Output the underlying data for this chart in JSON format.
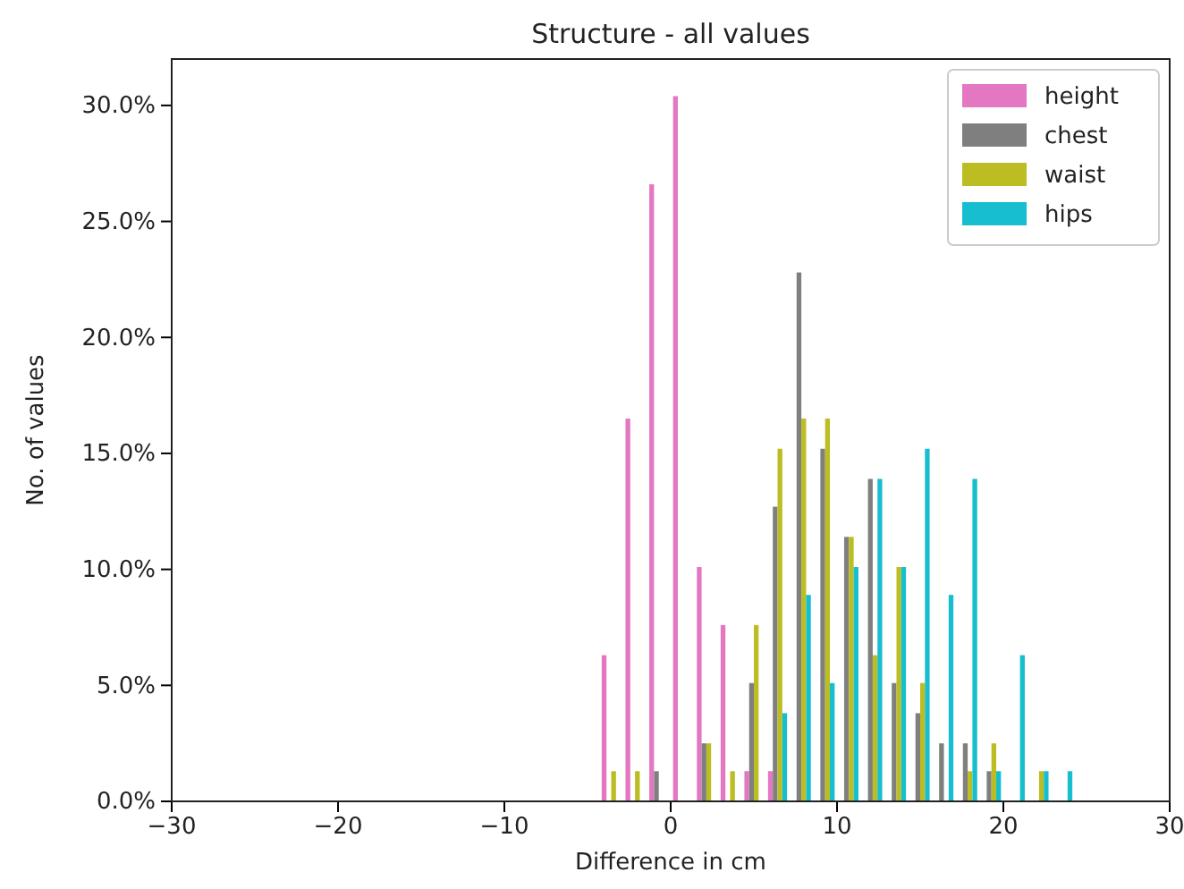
{
  "chart_data": {
    "type": "histogram",
    "title": "Structure - all values",
    "xlabel": "Difference in cm",
    "ylabel": "No. of values",
    "bins": [
      -4.29,
      -2.86,
      -1.43,
      0,
      1.43,
      2.86,
      4.29,
      5.71,
      7.14,
      8.57,
      10,
      11.43,
      12.86,
      14.29,
      15.71,
      17.14,
      18.57,
      20,
      21.43,
      22.86,
      24.29
    ],
    "series": [
      {
        "name": "height",
        "color": "#e377c2",
        "values": [
          6.3,
          16.5,
          26.6,
          30.4,
          10.1,
          7.6,
          1.3,
          1.3,
          0,
          0,
          0,
          0,
          0,
          0,
          0,
          0,
          0,
          0,
          0,
          0
        ]
      },
      {
        "name": "chest",
        "color": "#7f7f7f",
        "values": [
          0,
          0,
          1.3,
          0,
          2.5,
          0,
          5.1,
          12.7,
          22.8,
          15.2,
          11.4,
          13.9,
          5.1,
          3.8,
          2.5,
          2.5,
          1.3,
          0,
          0,
          0
        ]
      },
      {
        "name": "waist",
        "color": "#bcbd22",
        "values": [
          1.3,
          1.3,
          0,
          0,
          2.5,
          1.3,
          7.6,
          15.2,
          16.5,
          16.5,
          11.4,
          6.3,
          10.1,
          5.1,
          0,
          1.3,
          2.5,
          0,
          1.3,
          0
        ]
      },
      {
        "name": "hips",
        "color": "#17becf",
        "values": [
          0,
          0,
          0,
          0,
          0,
          0,
          0,
          3.8,
          8.9,
          5.1,
          10.1,
          13.9,
          10.1,
          15.2,
          8.9,
          13.9,
          1.3,
          6.3,
          1.3,
          1.3
        ]
      }
    ],
    "xlim": [
      -30,
      30
    ],
    "xticks": [
      -30,
      -20,
      -10,
      0,
      10,
      20,
      30
    ],
    "ylim": [
      0,
      32
    ],
    "yticks": [
      {
        "value": 0,
        "label": "0.0%"
      },
      {
        "value": 5,
        "label": "5.0%"
      },
      {
        "value": 10,
        "label": "10.0%"
      },
      {
        "value": 15,
        "label": "15.0%"
      },
      {
        "value": 20,
        "label": "20.0%"
      },
      {
        "value": 25,
        "label": "25.0%"
      },
      {
        "value": 30,
        "label": "30.0%"
      }
    ],
    "legend": "top right"
  }
}
